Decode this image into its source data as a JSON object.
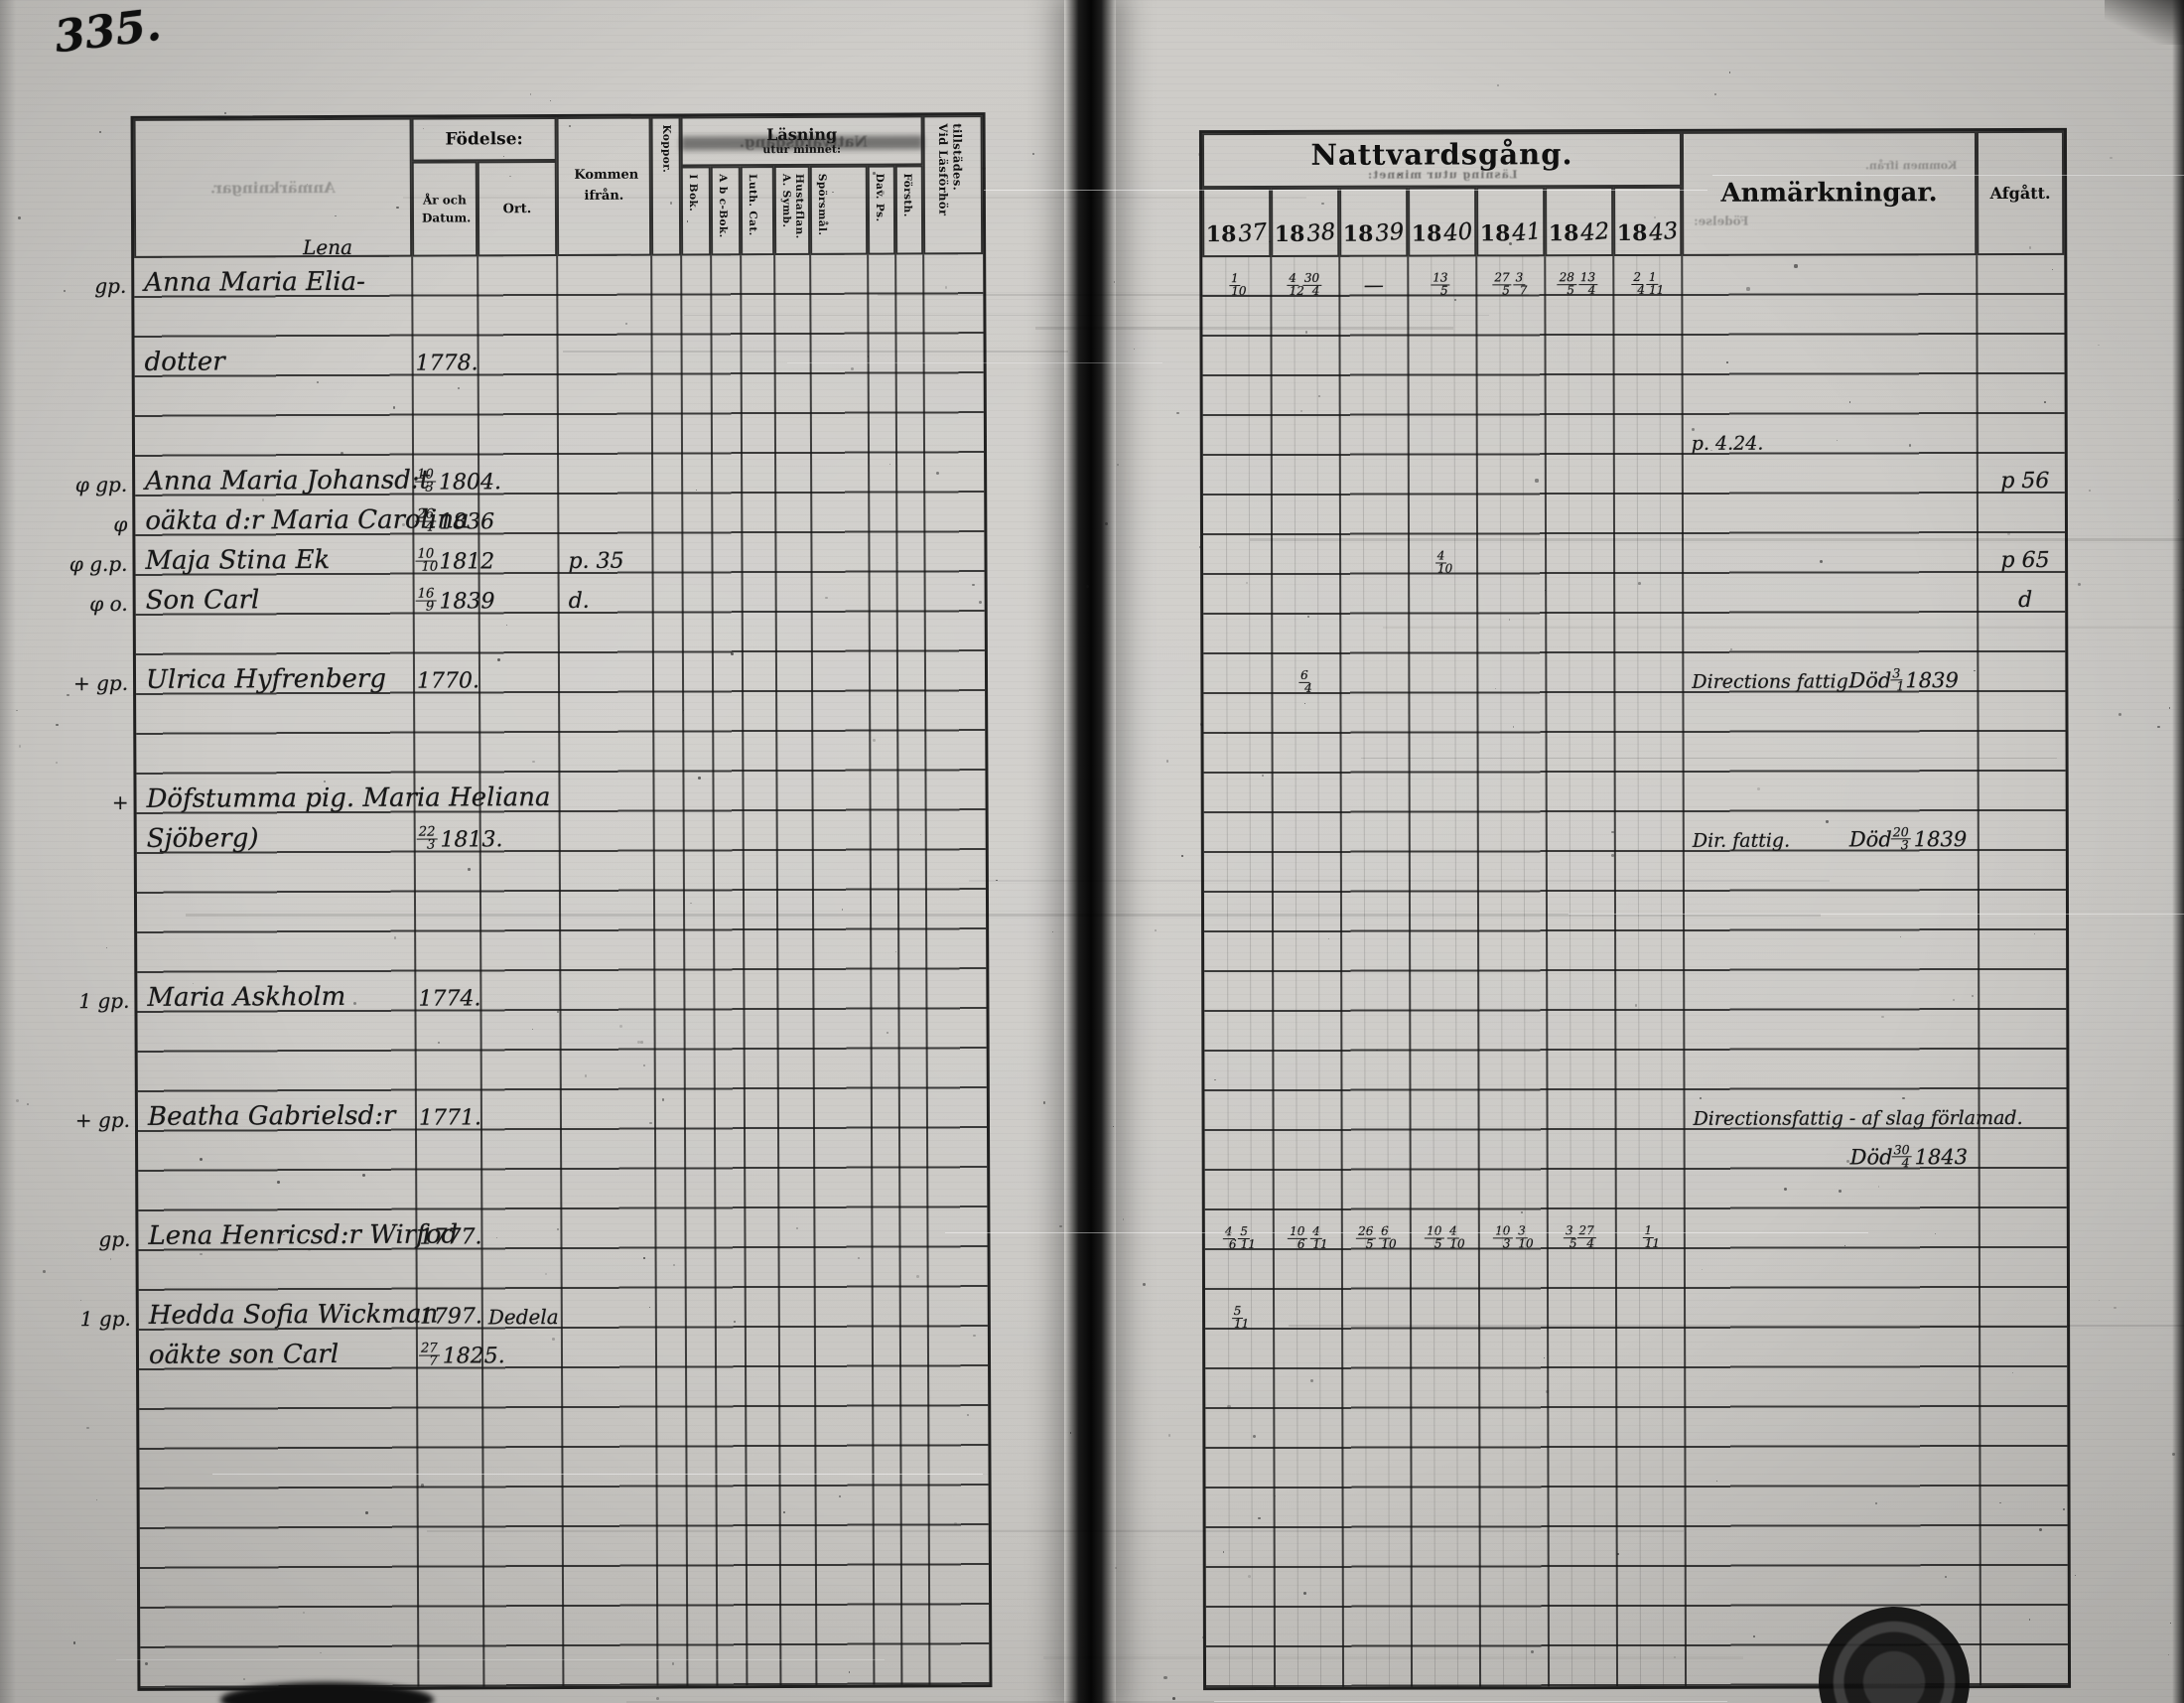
{
  "page_number": "335.",
  "left_page": {
    "header": {
      "fodelse": "Födelse:",
      "ar_och_datum": "År och Datum.",
      "ort": "Ort.",
      "kommen_ifran": "Kommen ifrån.",
      "koppor": "Koppor.",
      "lasning": "Läsning",
      "lasning_sub": "utur minnet:",
      "reading_columns": [
        "I Bok.",
        "A b c-Bok.",
        "Luth. Cat.",
        "A. Symb. Hustaflan.",
        "Spörsmål.",
        "Dav. Ps.",
        "Försth."
      ],
      "vid_lasforhor": "Vid Läsförhör tillstädes."
    },
    "entries": [
      {
        "row": 0,
        "margin": "gp.",
        "name": "Anna Maria Elia-",
        "note_above": "Lena"
      },
      {
        "row": 2,
        "name": "dotter",
        "birth": "1778."
      },
      {
        "row": 5,
        "margin": "φ gp.",
        "name": "Anna Maria Johansd:t",
        "birth": "10/3 1804."
      },
      {
        "row": 6,
        "margin": "φ",
        "name": "oäkta d:r Maria Carolina",
        "birth": "26/4 1836"
      },
      {
        "row": 7,
        "margin": "φ g.p.",
        "name": "Maja Stina Ek",
        "birth": "10/10 1812",
        "kommen": "p. 35"
      },
      {
        "row": 8,
        "margin": "φ o.",
        "name": "Son Carl",
        "birth": "16/9 1839",
        "kommen": "d."
      },
      {
        "row": 10,
        "margin": "+ gp.",
        "name": "Ulrica Hyfrenberg",
        "birth": "1770."
      },
      {
        "row": 13,
        "margin": "+",
        "name": "Döfstumma pig. Maria Heliana"
      },
      {
        "row": 14,
        "name": "Sjöberg)",
        "birth": "22/3 1813."
      },
      {
        "row": 18,
        "margin": "1 gp.",
        "name": "Maria Askholm",
        "birth": "1774."
      },
      {
        "row": 21,
        "margin": "+ gp.",
        "name": "Beatha Gabrielsd:r",
        "birth": "1771."
      },
      {
        "row": 24,
        "margin": "gp.",
        "name": "Lena Henricsd:r Wirfod",
        "birth": "1777."
      },
      {
        "row": 26,
        "margin": "1 gp.",
        "name": "Hedda Sofia Wickman",
        "birth": "1797.",
        "ort": "Dedela"
      },
      {
        "row": 27,
        "name": "oäkte son Carl",
        "birth": "27/7 1825."
      }
    ]
  },
  "right_page": {
    "header": {
      "title": "Nattvardsgång.",
      "year_prefix": "18",
      "years": [
        "37",
        "38",
        "39",
        "40",
        "41",
        "42",
        "43"
      ],
      "anmarkningar": "Anmärkningar.",
      "afgatt": "Afgått."
    },
    "entries": [
      {
        "row": 0,
        "cells": [
          "1/10",
          "4/12 30/4",
          "—",
          "13/5",
          "27/5 3/7",
          "28/5 13/4",
          "2/4 1/11"
        ]
      },
      {
        "row": 4,
        "anm": "p. 4.24."
      },
      {
        "row": 5,
        "afgatt": "p 56"
      },
      {
        "row": 7,
        "cells": [
          "",
          "",
          "",
          "4/10",
          "",
          "",
          ""
        ],
        "afgatt": "p 65"
      },
      {
        "row": 8,
        "afgatt": "d"
      },
      {
        "row": 10,
        "cells": [
          "",
          "6/4",
          "",
          "",
          "",
          "",
          ""
        ],
        "anm": "Directions fattig.",
        "anm_right": "Död 3/1 1839"
      },
      {
        "row": 14,
        "anm": "Dir. fattig.",
        "anm_right": "Död 20/3 1839"
      },
      {
        "row": 21,
        "anm": "Directionsfattig - af slag förlamad."
      },
      {
        "row": 22,
        "anm_right": "Död 30/4 1843"
      },
      {
        "row": 24,
        "cells": [
          "4/6 5/11",
          "10/6 4/11",
          "26/5 6/10",
          "10/5 4/10",
          "10/3 3/10",
          "3/5 27/4",
          "1/11"
        ]
      },
      {
        "row": 26,
        "cells": [
          "5/11",
          "",
          "",
          "",
          "",
          "",
          ""
        ]
      }
    ]
  },
  "bleed_text": {
    "left_name_box": "Anmärkningar.",
    "left_lasning_smudge": "Nattvardsgång.",
    "right_title_sub": "Läsning utur minnet:",
    "right_kommen": "Kommen ifrån.",
    "right_fodelse": "Födelse:"
  }
}
